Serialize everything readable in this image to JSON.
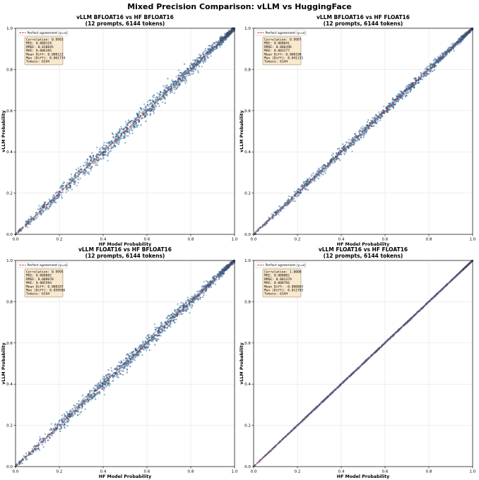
{
  "figure_title": "Mixed Precision Comparison: vLLM vs HuggingFace",
  "colors": {
    "points": "#3a78a8",
    "points_dark": "#2a4a6a",
    "diagonal": "#d62728",
    "grid": "#e3e3e3",
    "stats_bg": "#f8e6c8",
    "stats_border": "#8a7a5a"
  },
  "chart_data": [
    {
      "type": "scatter",
      "title_line1": "vLLM BFLOAT16 vs HF BFLOAT16",
      "title_line2": "(12 prompts, 6144 tokens)",
      "xlabel": "HF Model Probability",
      "ylabel": "vLLM Probability",
      "xlim": [
        0,
        1
      ],
      "ylim": [
        0,
        1
      ],
      "xticks": [
        "0.0",
        "0.2",
        "0.4",
        "0.6",
        "0.8",
        "1.0"
      ],
      "yticks": [
        "0.0",
        "0.2",
        "0.4",
        "0.6",
        "0.8",
        "1.0"
      ],
      "grid": true,
      "legend": "Perfect agreement (y=x)",
      "legend_position": "top-left",
      "reference_line": [
        [
          0,
          0
        ],
        [
          1,
          1
        ]
      ],
      "n_points": 6144,
      "scatter_spread_std": 0.0161,
      "stats": [
        "Correlation: 0.9993",
        "MSE: 0.000118",
        "RMSE: 0.010845",
        "MAE: 0.006185",
        "Mean Diff: 0.000122",
        "Max |Diff|: 0.061774",
        "Tokens: 6144"
      ]
    },
    {
      "type": "scatter",
      "title_line1": "vLLM BFLOAT16 vs HF FLOAT16",
      "title_line2": "(12 prompts, 6144 tokens)",
      "xlabel": "HF Model Probability",
      "ylabel": "vLLM Probability",
      "xlim": [
        0,
        1
      ],
      "ylim": [
        0,
        1
      ],
      "xticks": [
        "0.0",
        "0.2",
        "0.4",
        "0.6",
        "0.8",
        "1.0"
      ],
      "yticks": [
        "0.0",
        "0.2",
        "0.4",
        "0.6",
        "0.8",
        "1.0"
      ],
      "grid": true,
      "legend": "Perfect agreement (y=x)",
      "legend_position": "top-left",
      "reference_line": [
        [
          0,
          0
        ],
        [
          1,
          1
        ]
      ],
      "n_points": 6144,
      "scatter_spread_std": 0.0098,
      "stats": [
        "Correlation: 0.9997",
        "MSE: 0.000041",
        "RMSE: 0.006396",
        "MAE: 0.003277",
        "Mean Diff: 0.000108",
        "Max |Diff|: 0.041231",
        "Tokens: 6144"
      ]
    },
    {
      "type": "scatter",
      "title_line1": "vLLM FLOAT16 vs HF BFLOAT16",
      "title_line2": "(12 prompts, 6144 tokens)",
      "xlabel": "HF Model Probability",
      "ylabel": "vLLM Probability",
      "xlim": [
        0,
        1
      ],
      "ylim": [
        0,
        1
      ],
      "xticks": [
        "0.0",
        "0.2",
        "0.4",
        "0.6",
        "0.8",
        "1.0"
      ],
      "yticks": [
        "0.0",
        "0.2",
        "0.4",
        "0.6",
        "0.8",
        "1.0"
      ],
      "grid": true,
      "legend": "Perfect agreement (y=x)",
      "legend_position": "top-left",
      "reference_line": [
        [
          0,
          0
        ],
        [
          1,
          1
        ]
      ],
      "n_points": 6144,
      "scatter_spread_std": 0.0138,
      "stats": [
        "Correlation: 0.9995",
        "MSE: 0.000082",
        "RMSE: 0.009070",
        "MAE: 0.005584",
        "Mean Diff: 0.000187",
        "Max |Diff|: 0.058506",
        "Tokens: 6144"
      ]
    },
    {
      "type": "scatter",
      "title_line1": "vLLM FLOAT16 vs HF FLOAT16",
      "title_line2": "(12 prompts, 6144 tokens)",
      "xlabel": "HF Model Probability",
      "ylabel": "vLLM Probability",
      "xlim": [
        0,
        1
      ],
      "ylim": [
        0,
        1
      ],
      "xticks": [
        "0.0",
        "0.2",
        "0.4",
        "0.6",
        "0.8",
        "1.0"
      ],
      "yticks": [
        "0.0",
        "0.2",
        "0.4",
        "0.6",
        "0.8",
        "1.0"
      ],
      "grid": true,
      "legend": "Perfect agreement (y=x)",
      "legend_position": "top-left",
      "reference_line": [
        [
          0,
          0
        ],
        [
          1,
          1
        ]
      ],
      "n_points": 6144,
      "scatter_spread_std": 0.0014,
      "stats": [
        "Correlation: 1.0000",
        "MSE: 0.000002",
        "RMSE: 0.001379",
        "MAE: 0.000766",
        "Mean Diff: -0.000065",
        "Max |Diff|: 0.011765",
        "Tokens: 6144"
      ]
    }
  ]
}
